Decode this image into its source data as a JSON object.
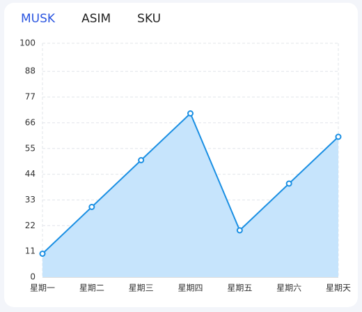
{
  "tabs": [
    "MUSK",
    "ASIM",
    "SKU"
  ],
  "chart_data": {
    "type": "area",
    "categories": [
      "星期一",
      "星期二",
      "星期三",
      "星期四",
      "星期五",
      "星期六",
      "星期天"
    ],
    "values": [
      10,
      30,
      50,
      70,
      20,
      40,
      60
    ],
    "color": "#1a8fe3",
    "fill": "#c6e4fc",
    "ylim": [
      0,
      100
    ],
    "yticks": [
      0,
      11,
      22,
      33,
      44,
      55,
      66,
      77,
      88,
      100
    ],
    "grid": true
  }
}
